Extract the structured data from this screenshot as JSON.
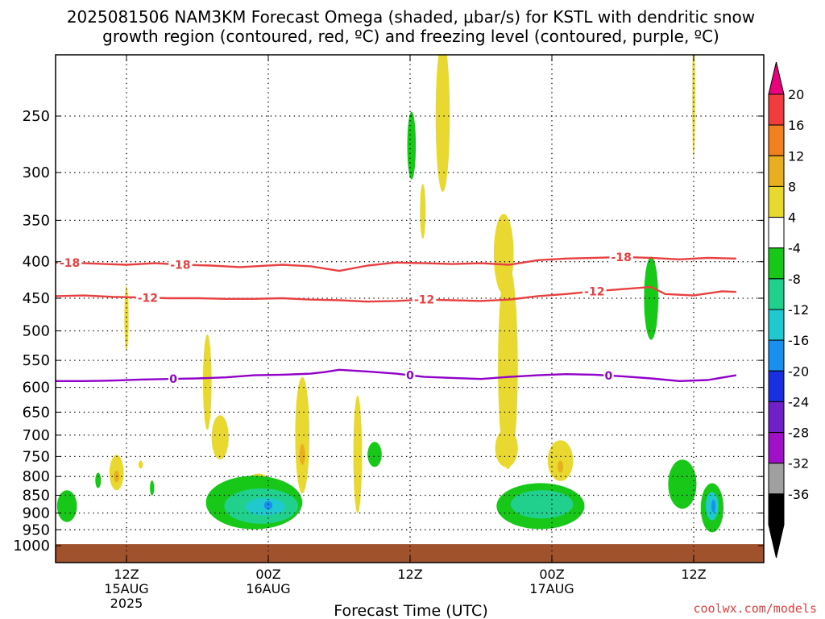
{
  "chart_data": {
    "type": "heatmap",
    "title_line1": "2025081506 NAM3KM Forecast Omega (shaded, μbar/s) for KSTL with dendritic snow",
    "title_line2": "growth region (contoured, red, ºC) and freezing level (contoured, purple, ºC)",
    "xlabel": "Forecast Time (UTC)",
    "ylabel": "",
    "credit": "coolwx.com/models",
    "x_range_hours": [
      -7,
      43
    ],
    "y_range_hpa": [
      200,
      1010
    ],
    "y_ticks": [
      250,
      300,
      350,
      400,
      450,
      500,
      550,
      600,
      650,
      700,
      750,
      800,
      850,
      900,
      950,
      1000
    ],
    "x_ticks": [
      {
        "hour": 0,
        "label": "12Z",
        "sub1": "15AUG",
        "sub2": "2025"
      },
      {
        "hour": 10,
        "label": "00Z",
        "sub1": "16AUG",
        "sub2": ""
      },
      {
        "hour": 20,
        "label": "12Z",
        "sub1": "",
        "sub2": ""
      },
      {
        "hour": 30,
        "label": "00Z",
        "sub1": "17AUG",
        "sub2": ""
      },
      {
        "hour": 40,
        "label": "12Z",
        "sub1": "",
        "sub2": ""
      }
    ],
    "colorbar": [
      {
        "value": 20,
        "label": "20",
        "color": "#e8007c"
      },
      {
        "value": 16,
        "label": "16",
        "color": "#f03c3c"
      },
      {
        "value": 12,
        "label": "12",
        "color": "#f08020"
      },
      {
        "value": 8,
        "label": "8",
        "color": "#e8b020"
      },
      {
        "value": 4,
        "label": "4",
        "color": "#e8d830"
      },
      {
        "value": -4,
        "label": "-4",
        "color": "#ffffff"
      },
      {
        "value": -8,
        "label": "-8",
        "color": "#18c818"
      },
      {
        "value": -12,
        "label": "-12",
        "color": "#20d08c"
      },
      {
        "value": -16,
        "label": "-16",
        "color": "#20c8d0"
      },
      {
        "value": -20,
        "label": "-20",
        "color": "#1890f0"
      },
      {
        "value": -24,
        "label": "-24",
        "color": "#1830e0"
      },
      {
        "value": -28,
        "label": "-28",
        "color": "#7020c8"
      },
      {
        "value": -32,
        "label": "-32",
        "color": "#a010c8"
      },
      {
        "value": -36,
        "label": "-36",
        "color": "#a0a0a0"
      },
      {
        "value": null,
        "label": "",
        "color": "#000000"
      }
    ],
    "contours": [
      {
        "level": -18,
        "label": "-18",
        "color": "#e84040",
        "label_hours": [
          -4,
          3.8,
          34.9
        ],
        "points": [
          [
            -7,
            404
          ],
          [
            -5,
            401
          ],
          [
            -3,
            402
          ],
          [
            0,
            404
          ],
          [
            2,
            402
          ],
          [
            4,
            404
          ],
          [
            6,
            405
          ],
          [
            8,
            407
          ],
          [
            9,
            406
          ],
          [
            11,
            404
          ],
          [
            13,
            406
          ],
          [
            15,
            412
          ],
          [
            17,
            405
          ],
          [
            19,
            401
          ],
          [
            21,
            402
          ],
          [
            23,
            403
          ],
          [
            25,
            402
          ],
          [
            27,
            404
          ],
          [
            29,
            398
          ],
          [
            31,
            396
          ],
          [
            33,
            395
          ],
          [
            35,
            394
          ],
          [
            37,
            395
          ],
          [
            39,
            397
          ],
          [
            41,
            395
          ],
          [
            43,
            396
          ]
        ]
      },
      {
        "level": -12,
        "label": "-12",
        "color": "#e84040",
        "label_hours": [
          1.5,
          21,
          33
        ],
        "points": [
          [
            -7,
            453
          ],
          [
            -5,
            447
          ],
          [
            -3,
            446
          ],
          [
            -1,
            448
          ],
          [
            1,
            449
          ],
          [
            3,
            450
          ],
          [
            5,
            450
          ],
          [
            7,
            451
          ],
          [
            9,
            451
          ],
          [
            11,
            450
          ],
          [
            13,
            452
          ],
          [
            15,
            453
          ],
          [
            17,
            455
          ],
          [
            19,
            454
          ],
          [
            21,
            452
          ],
          [
            23,
            453
          ],
          [
            25,
            454
          ],
          [
            27,
            452
          ],
          [
            29,
            447
          ],
          [
            31,
            444
          ],
          [
            33,
            440
          ],
          [
            35,
            437
          ],
          [
            37,
            434
          ],
          [
            38,
            444
          ],
          [
            40,
            446
          ],
          [
            42,
            440
          ],
          [
            43,
            441
          ]
        ]
      },
      {
        "level": 0,
        "label": "0",
        "color": "#9000c8",
        "label_hours": [
          3.3,
          20,
          34
        ],
        "points": [
          [
            -7,
            589
          ],
          [
            -5,
            588
          ],
          [
            -3,
            588
          ],
          [
            -1,
            587
          ],
          [
            1,
            585
          ],
          [
            3,
            584
          ],
          [
            5,
            583
          ],
          [
            7,
            581
          ],
          [
            9,
            577
          ],
          [
            11,
            576
          ],
          [
            13,
            574
          ],
          [
            14,
            571
          ],
          [
            15,
            567
          ],
          [
            17,
            570
          ],
          [
            19,
            574
          ],
          [
            21,
            580
          ],
          [
            23,
            582
          ],
          [
            25,
            584
          ],
          [
            27,
            580
          ],
          [
            29,
            577
          ],
          [
            31,
            575
          ],
          [
            33,
            576
          ],
          [
            35,
            579
          ],
          [
            37,
            583
          ],
          [
            39,
            588
          ],
          [
            41,
            586
          ],
          [
            43,
            577
          ]
        ]
      }
    ],
    "omega_features": [
      {
        "kind": "updraft",
        "cells": [
          {
            "hour": 0,
            "p": 480,
            "dh": 0.15,
            "dp": 50,
            "value": 5
          },
          {
            "hour": -0.7,
            "p": 790,
            "dh": 0.5,
            "dp": 45,
            "value": 5
          },
          {
            "hour": -0.7,
            "p": 800,
            "dh": 0.2,
            "dp": 15,
            "value": 8
          },
          {
            "hour": 1,
            "p": 770,
            "dh": 0.15,
            "dp": 10,
            "value": 5
          },
          {
            "hour": 5.7,
            "p": 590,
            "dh": 0.3,
            "dp": 90,
            "value": 5
          },
          {
            "hour": 6.6,
            "p": 705,
            "dh": 0.6,
            "dp": 50,
            "value": 5
          },
          {
            "hour": 9.3,
            "p": 860,
            "dh": 1.3,
            "dp": 70,
            "value": 5
          },
          {
            "hour": 12.4,
            "p": 700,
            "dh": 0.5,
            "dp": 130,
            "value": 5
          },
          {
            "hour": 12.4,
            "p": 745,
            "dh": 0.2,
            "dp": 25,
            "value": 9
          },
          {
            "hour": 16.3,
            "p": 745,
            "dh": 0.3,
            "dp": 140,
            "value": 5
          },
          {
            "hour": 20.9,
            "p": 340,
            "dh": 0.2,
            "dp": 30,
            "value": 5
          },
          {
            "hour": 22.3,
            "p": 250,
            "dh": 0.5,
            "dp": 60,
            "value": 5
          },
          {
            "hour": 26.6,
            "p": 390,
            "dh": 0.7,
            "dp": 50,
            "value": 5
          },
          {
            "hour": 26.9,
            "p": 560,
            "dh": 0.7,
            "dp": 180,
            "value": 5
          },
          {
            "hour": 26.8,
            "p": 730,
            "dh": 0.8,
            "dp": 45,
            "value": 5
          },
          {
            "hour": 30.6,
            "p": 760,
            "dh": 0.9,
            "dp": 50,
            "value": 5
          },
          {
            "hour": 30.6,
            "p": 775,
            "dh": 0.2,
            "dp": 15,
            "value": 9
          },
          {
            "hour": 40,
            "p": 235,
            "dh": 0.1,
            "dp": 45,
            "value": 5
          }
        ]
      },
      {
        "kind": "downdraft",
        "cells": [
          {
            "hour": -4.2,
            "p": 880,
            "dh": 0.7,
            "dp": 45,
            "value": -6
          },
          {
            "hour": -2,
            "p": 810,
            "dh": 0.2,
            "dp": 20,
            "value": -6
          },
          {
            "hour": 1.8,
            "p": 830,
            "dh": 0.15,
            "dp": 20,
            "value": -6
          },
          {
            "hour": 9,
            "p": 870,
            "dh": 3.4,
            "dp": 75,
            "value": -6
          },
          {
            "hour": 9.5,
            "p": 880,
            "dh": 2.6,
            "dp": 50,
            "value": -10
          },
          {
            "hour": 9.8,
            "p": 882,
            "dh": 1.4,
            "dp": 25,
            "value": -14
          },
          {
            "hour": 10,
            "p": 878,
            "dh": 0.3,
            "dp": 12,
            "value": -18
          },
          {
            "hour": 17.5,
            "p": 745,
            "dh": 0.5,
            "dp": 30,
            "value": -6
          },
          {
            "hour": 20.1,
            "p": 275,
            "dh": 0.3,
            "dp": 30,
            "value": -6
          },
          {
            "hour": 29.2,
            "p": 880,
            "dh": 3.1,
            "dp": 65,
            "value": -6
          },
          {
            "hour": 29.3,
            "p": 875,
            "dh": 2.2,
            "dp": 40,
            "value": -10
          },
          {
            "hour": 37,
            "p": 450,
            "dh": 0.5,
            "dp": 60,
            "value": -6
          },
          {
            "hour": 39.2,
            "p": 820,
            "dh": 1.0,
            "dp": 65,
            "value": -6
          },
          {
            "hour": 41.3,
            "p": 885,
            "dh": 0.8,
            "dp": 70,
            "value": -6
          },
          {
            "hour": 41.3,
            "p": 880,
            "dh": 0.45,
            "dp": 40,
            "value": -12
          },
          {
            "hour": 41.4,
            "p": 880,
            "dh": 0.15,
            "dp": 18,
            "value": -18
          }
        ]
      }
    ],
    "ground": {
      "color": "#a0522d",
      "p_top": 995
    }
  }
}
